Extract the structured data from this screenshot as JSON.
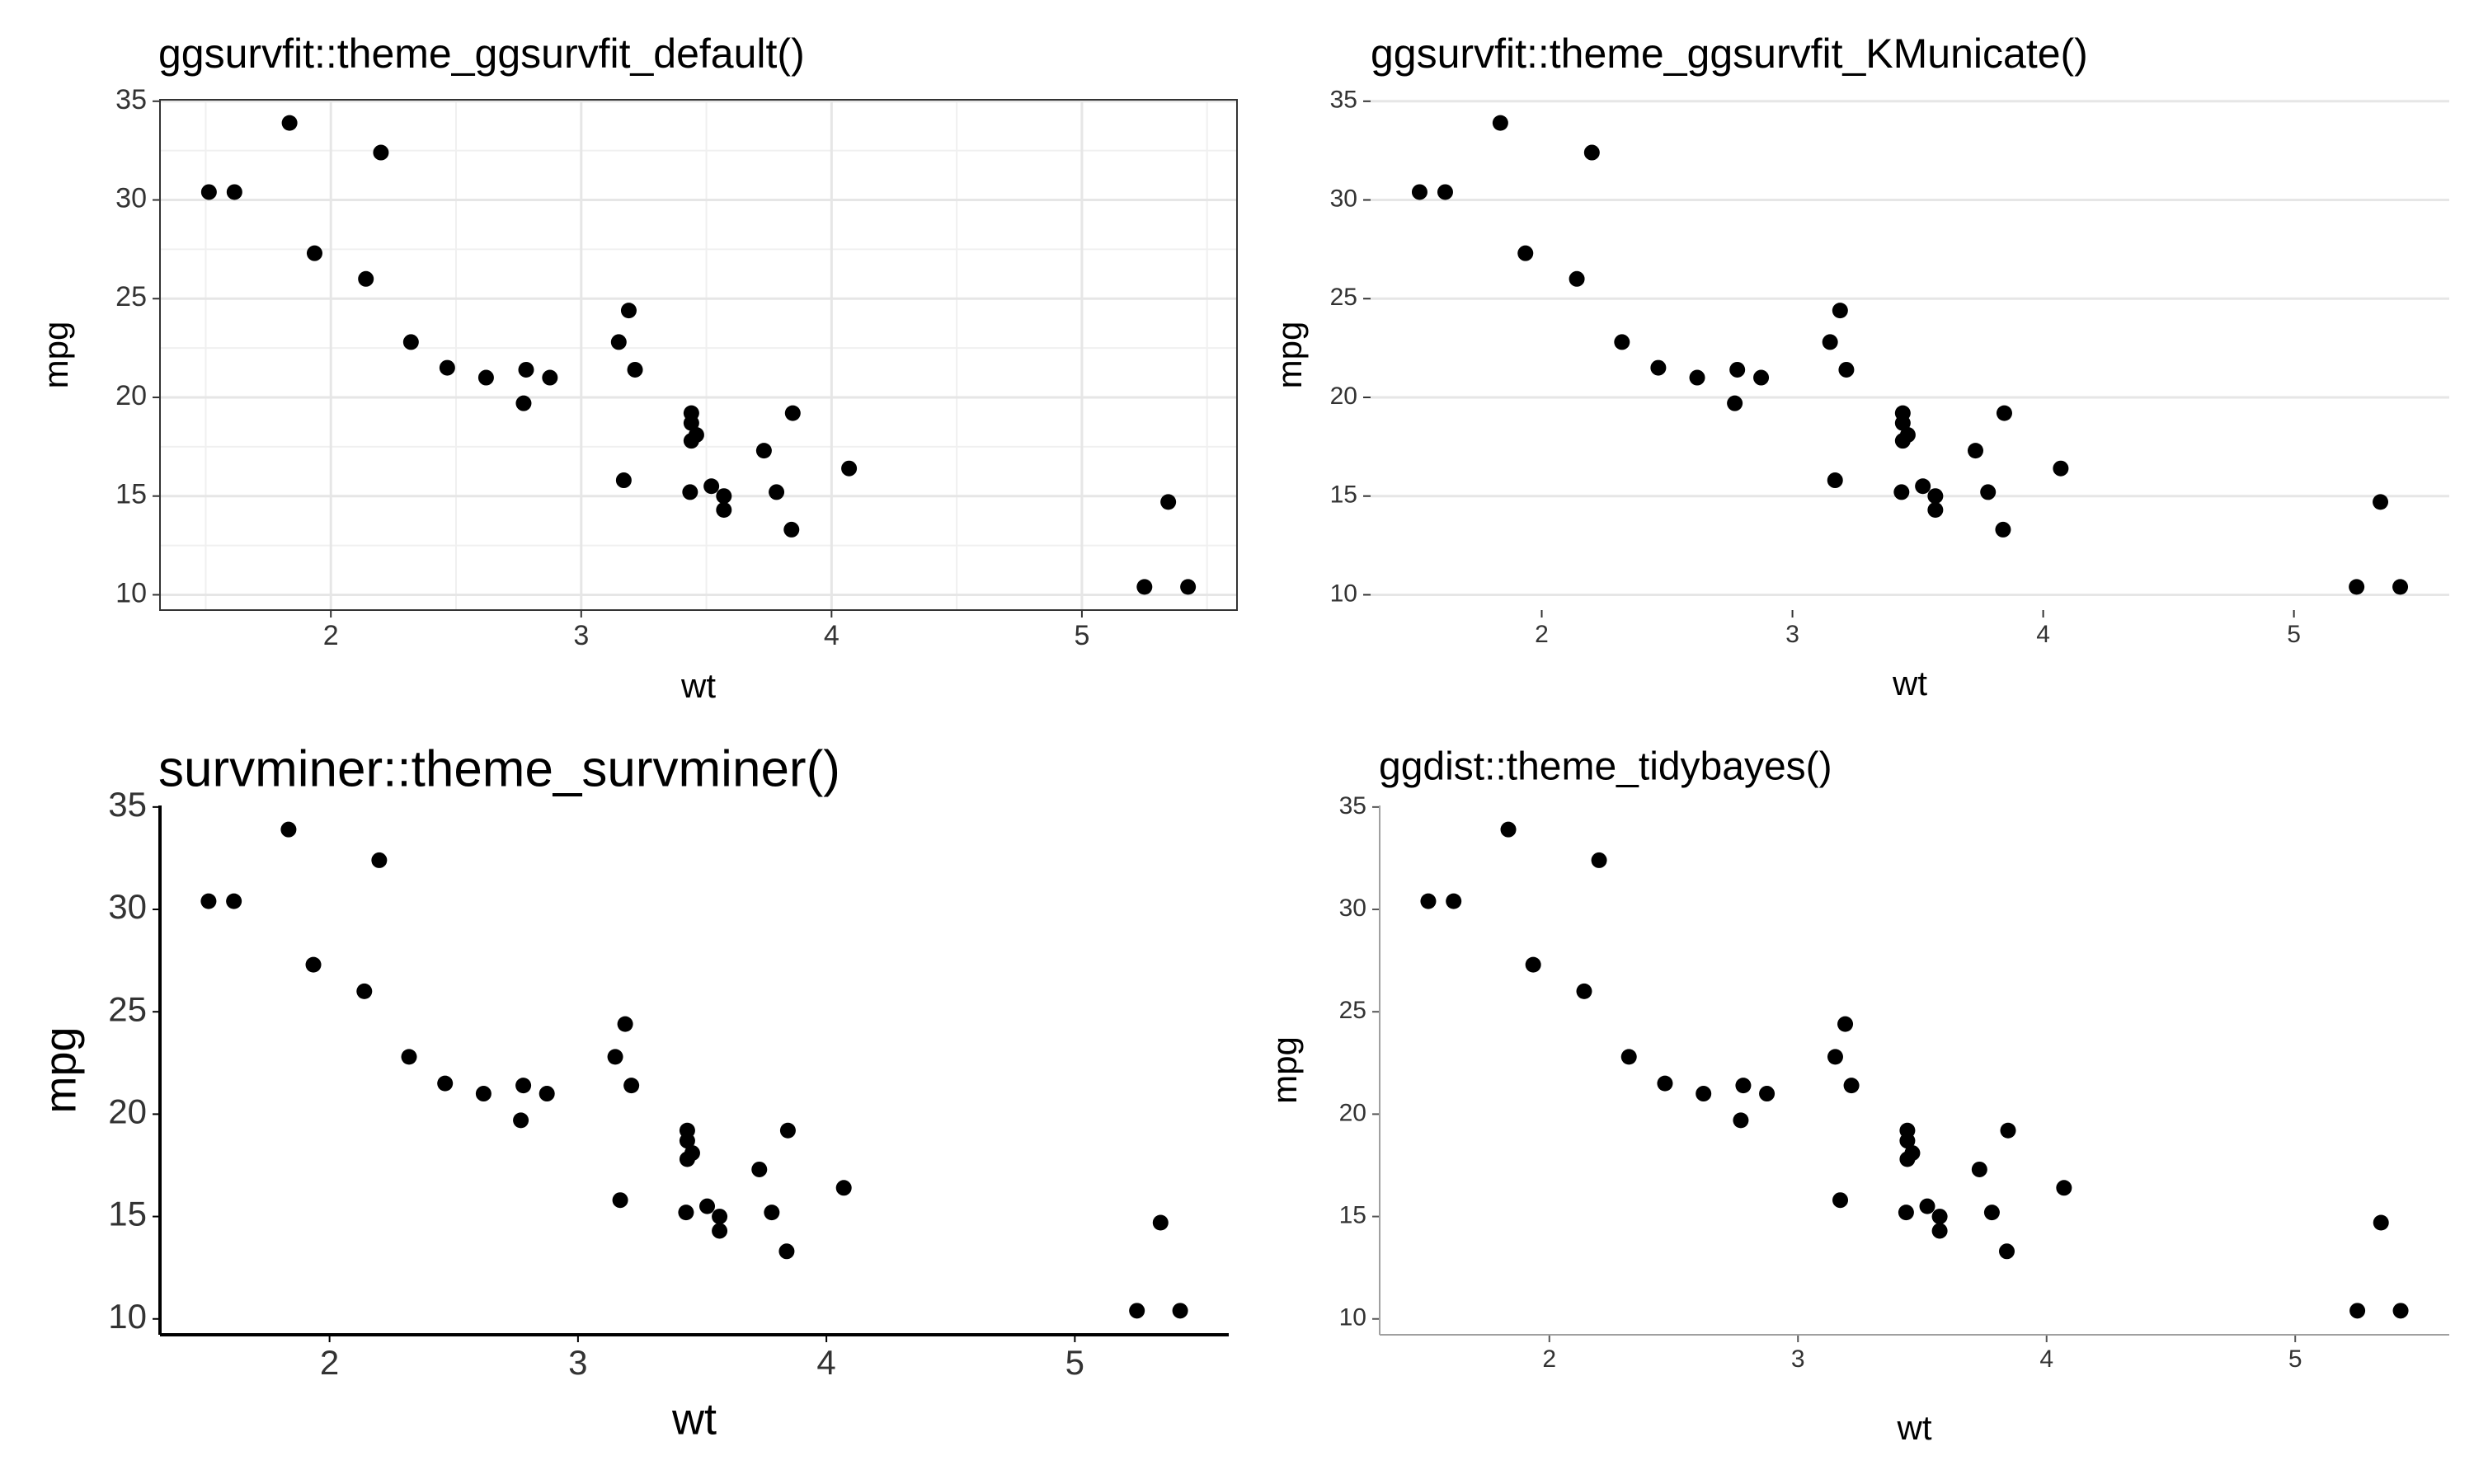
{
  "chart_data": [
    {
      "type": "scatter",
      "title": "ggsurvfit::theme_ggsurvfit_default()",
      "x_label": "wt",
      "y_label": "mpg",
      "x": [
        2.62,
        2.875,
        2.32,
        3.215,
        3.44,
        3.46,
        3.57,
        3.19,
        3.15,
        3.44,
        3.44,
        4.07,
        3.73,
        3.78,
        5.25,
        5.424,
        5.345,
        2.2,
        1.615,
        1.835,
        2.465,
        3.52,
        3.435,
        3.84,
        3.845,
        1.935,
        2.14,
        1.513,
        3.17,
        2.77,
        3.57,
        2.78
      ],
      "values": [
        21.0,
        21.0,
        22.8,
        21.4,
        18.7,
        18.1,
        14.3,
        24.4,
        22.8,
        19.2,
        17.8,
        16.4,
        17.3,
        15.2,
        10.4,
        10.4,
        14.7,
        32.4,
        30.4,
        33.9,
        21.5,
        15.5,
        15.2,
        13.3,
        19.2,
        27.3,
        26.0,
        30.4,
        15.8,
        19.7,
        15.0,
        21.4
      ],
      "color": "#000000",
      "xlim": [
        1.31745,
        5.61955
      ],
      "ylim": [
        9.225,
        35.075
      ],
      "xticks": [
        2,
        3,
        4,
        5
      ],
      "yticks": [
        10,
        15,
        20,
        25,
        30,
        35
      ],
      "xgrid": true,
      "ygrid": true,
      "minor_grid": true,
      "frame": true,
      "axis_lines": false,
      "axis_color": "#333333"
    },
    {
      "type": "scatter",
      "title": "ggsurvfit::theme_ggsurvfit_KMunicate()",
      "x_label": "wt",
      "y_label": "mpg",
      "x": [
        2.62,
        2.875,
        2.32,
        3.215,
        3.44,
        3.46,
        3.57,
        3.19,
        3.15,
        3.44,
        3.44,
        4.07,
        3.73,
        3.78,
        5.25,
        5.424,
        5.345,
        2.2,
        1.615,
        1.835,
        2.465,
        3.52,
        3.435,
        3.84,
        3.845,
        1.935,
        2.14,
        1.513,
        3.17,
        2.77,
        3.57,
        2.78
      ],
      "values": [
        21.0,
        21.0,
        22.8,
        21.4,
        18.7,
        18.1,
        14.3,
        24.4,
        22.8,
        19.2,
        17.8,
        16.4,
        17.3,
        15.2,
        10.4,
        10.4,
        14.7,
        32.4,
        30.4,
        33.9,
        21.5,
        15.5,
        15.2,
        13.3,
        19.2,
        27.3,
        26.0,
        30.4,
        15.8,
        19.7,
        15.0,
        21.4
      ],
      "color": "#000000",
      "xlim": [
        1.31745,
        5.61955
      ],
      "ylim": [
        9.225,
        35.075
      ],
      "xticks": [
        2,
        3,
        4,
        5
      ],
      "yticks": [
        10,
        15,
        20,
        25,
        30,
        35
      ],
      "xgrid": false,
      "ygrid": true,
      "minor_grid": false,
      "frame": false,
      "axis_lines": false,
      "axis_color": "#cccccc"
    },
    {
      "type": "scatter",
      "title": "survminer::theme_survminer()",
      "x_label": "wt",
      "y_label": "mpg",
      "x": [
        2.62,
        2.875,
        2.32,
        3.215,
        3.44,
        3.46,
        3.57,
        3.19,
        3.15,
        3.44,
        3.44,
        4.07,
        3.73,
        3.78,
        5.25,
        5.424,
        5.345,
        2.2,
        1.615,
        1.835,
        2.465,
        3.52,
        3.435,
        3.84,
        3.845,
        1.935,
        2.14,
        1.513,
        3.17,
        2.77,
        3.57,
        2.78
      ],
      "values": [
        21.0,
        21.0,
        22.8,
        21.4,
        18.7,
        18.1,
        14.3,
        24.4,
        22.8,
        19.2,
        17.8,
        16.4,
        17.3,
        15.2,
        10.4,
        10.4,
        14.7,
        32.4,
        30.4,
        33.9,
        21.5,
        15.5,
        15.2,
        13.3,
        19.2,
        27.3,
        26.0,
        30.4,
        15.8,
        19.7,
        15.0,
        21.4
      ],
      "color": "#000000",
      "xlim": [
        1.31745,
        5.61955
      ],
      "ylim": [
        9.225,
        35.075
      ],
      "xticks": [
        2,
        3,
        4,
        5
      ],
      "yticks": [
        10,
        15,
        20,
        25,
        30,
        35
      ],
      "xgrid": false,
      "ygrid": false,
      "minor_grid": false,
      "frame": false,
      "axis_lines": true,
      "axis_color": "#000000"
    },
    {
      "type": "scatter",
      "title": "ggdist::theme_tidybayes()",
      "x_label": "wt",
      "y_label": "mpg",
      "x": [
        2.62,
        2.875,
        2.32,
        3.215,
        3.44,
        3.46,
        3.57,
        3.19,
        3.15,
        3.44,
        3.44,
        4.07,
        3.73,
        3.78,
        5.25,
        5.424,
        5.345,
        2.2,
        1.615,
        1.835,
        2.465,
        3.52,
        3.435,
        3.84,
        3.845,
        1.935,
        2.14,
        1.513,
        3.17,
        2.77,
        3.57,
        2.78
      ],
      "values": [
        21.0,
        21.0,
        22.8,
        21.4,
        18.7,
        18.1,
        14.3,
        24.4,
        22.8,
        19.2,
        17.8,
        16.4,
        17.3,
        15.2,
        10.4,
        10.4,
        14.7,
        32.4,
        30.4,
        33.9,
        21.5,
        15.5,
        15.2,
        13.3,
        19.2,
        27.3,
        26.0,
        30.4,
        15.8,
        19.7,
        15.0,
        21.4
      ],
      "color": "#000000",
      "xlim": [
        1.31745,
        5.61955
      ],
      "ylim": [
        9.225,
        35.075
      ],
      "xticks": [
        2,
        3,
        4,
        5
      ],
      "yticks": [
        10,
        15,
        20,
        25,
        30,
        35
      ],
      "xgrid": false,
      "ygrid": false,
      "minor_grid": false,
      "frame": false,
      "axis_lines": true,
      "axis_color": "#a0a0a0"
    }
  ]
}
